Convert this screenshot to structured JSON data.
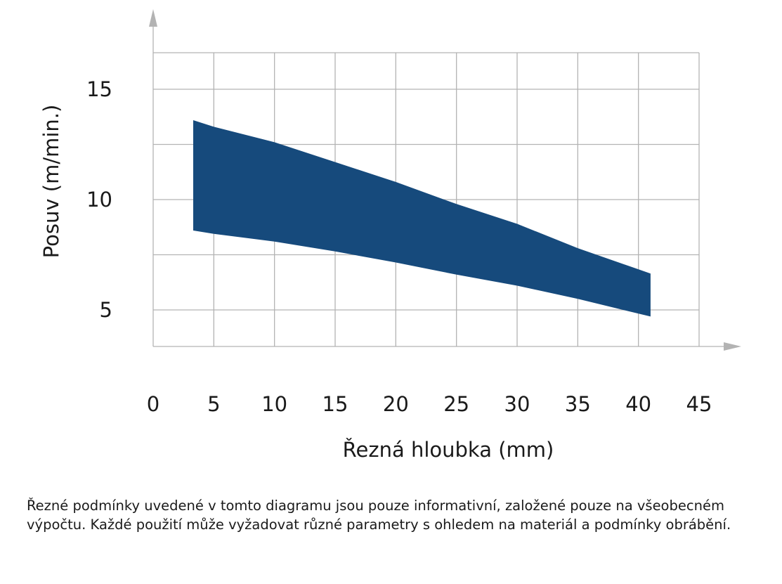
{
  "chart_data": {
    "type": "area",
    "xlabel": "Řezná hloubka (mm)",
    "ylabel": "Posuv (m/min.)",
    "x_ticks": [
      "0",
      "5",
      "10",
      "15",
      "20",
      "25",
      "30",
      "35",
      "40",
      "45"
    ],
    "y_ticks": [
      "5",
      "10",
      "15"
    ],
    "xlim": [
      0,
      45
    ],
    "ylim": [
      3.5,
      17.5
    ],
    "grid": true,
    "series": [
      {
        "x": [
          3.3,
          5,
          10,
          15,
          20,
          25,
          30,
          35,
          41
        ],
        "upper": [
          13.6,
          13.3,
          12.6,
          11.7,
          10.8,
          9.8,
          8.9,
          7.8,
          6.65
        ],
        "lower": [
          8.6,
          8.45,
          8.1,
          7.65,
          7.15,
          6.6,
          6.1,
          5.5,
          4.7
        ]
      }
    ],
    "colors": {
      "band": "#164a7c",
      "grid": "#b3b3b3",
      "text": "#1a1a1a"
    }
  },
  "note": "Řezné podmínky uvedené v tomto diagramu jsou pouze informativní, založené pouze na všeobecném výpočtu. Každé použití může vyžadovat různé parametry s ohledem na materiál a podmínky obrábění."
}
